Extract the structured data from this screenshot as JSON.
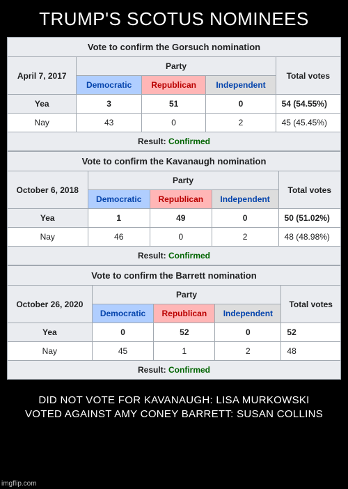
{
  "top_caption": "TRUMP'S SCOTUS NOMINEES",
  "bottom_caption_line1": "DID NOT VOTE FOR KAVANAUGH: LISA MURKOWSKI",
  "bottom_caption_line2": "VOTED AGAINST AMY CONEY BARRETT: SUSAN COLLINS",
  "watermark": "imgflip.com",
  "party_header": "Party",
  "column_labels": {
    "dem": "Democratic",
    "rep": "Republican",
    "ind": "Independent",
    "total": "Total votes",
    "yea": "Yea",
    "nay": "Nay",
    "result_label": "Result:"
  },
  "tables": [
    {
      "title": "Vote to confirm the Gorsuch nomination",
      "date": "April 7, 2017",
      "yea": {
        "dem": "3",
        "rep": "51",
        "ind": "0",
        "total": "54  (54.55%)",
        "bold": true
      },
      "nay": {
        "dem": "43",
        "rep": "0",
        "ind": "2",
        "total": "45  (45.45%)"
      },
      "result": "Confirmed"
    },
    {
      "title": "Vote to confirm the Kavanaugh nomination",
      "date": "October 6, 2018",
      "yea": {
        "dem": "1",
        "rep": "49",
        "ind": "0",
        "total": "50  (51.02%)",
        "bold": true
      },
      "nay": {
        "dem": "46",
        "rep": "0",
        "ind": "2",
        "total": "48  (48.98%)"
      },
      "result": "Confirmed"
    },
    {
      "title": "Vote to confirm the Barrett nomination",
      "date": "October 26, 2020",
      "yea": {
        "dem": "0",
        "rep": "52",
        "ind": "0",
        "total": "52",
        "bold": true
      },
      "nay": {
        "dem": "45",
        "rep": "1",
        "ind": "2",
        "total": "48"
      },
      "result": "Confirmed"
    }
  ]
}
